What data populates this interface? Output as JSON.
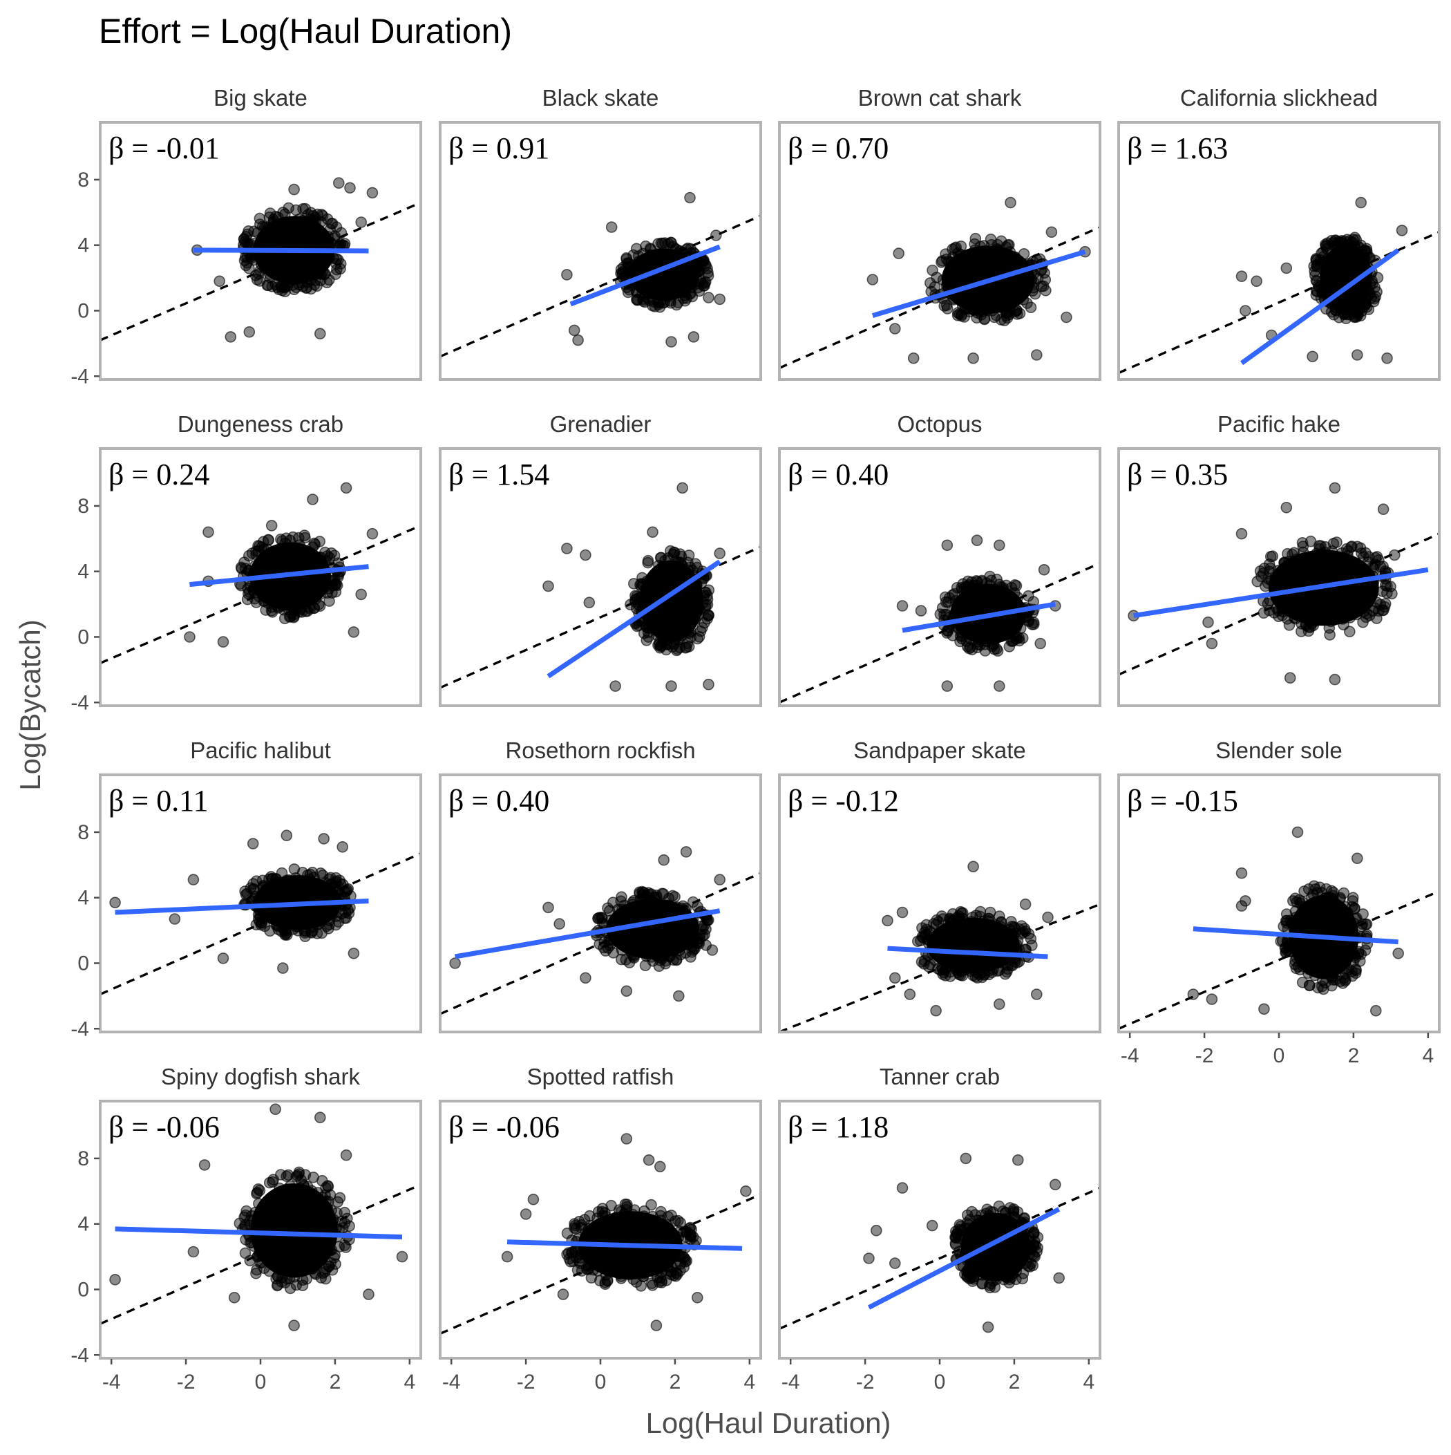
{
  "title": "Effort = Log(Haul Duration)",
  "colors": {
    "fit_line": "#3366FF",
    "points": "#000000",
    "reference_line": "#000000",
    "panel_border": "#b3b3b3"
  },
  "chart_data": {
    "type": "scatter",
    "title": "Effort = Log(Haul Duration)",
    "xlabel": "Log(Haul Duration)",
    "ylabel": "Log(Bycatch)",
    "xlim": [
      -4.3,
      4.3
    ],
    "ylim": [
      -4.2,
      11.5
    ],
    "x_ticks": [
      -4,
      -2,
      0,
      2,
      4
    ],
    "x_tick_labels": [
      "-4",
      "-2",
      "0",
      "2",
      "4"
    ],
    "y_ticks": [
      -4,
      0,
      4,
      8
    ],
    "y_tick_labels": [
      "-4",
      "0",
      "4",
      "8"
    ],
    "reference_line": "dashed, slope 1",
    "fit_line": "solid blue linear fit",
    "facets": [
      {
        "name": "Big skate",
        "beta_label": "β = -0.01",
        "beta": -0.01,
        "cloud": {
          "cx": 0.9,
          "cy": 3.7,
          "rx": 1.4,
          "ry": 2.6
        },
        "xrange": [
          -1.8,
          2.9
        ],
        "fit": [
          [
            -1.8,
            3.7
          ],
          [
            2.9,
            3.65
          ]
        ],
        "ref": [
          [
            -4.3,
            -1.8
          ],
          [
            4.3,
            6.6
          ]
        ],
        "outliers": [
          [
            -1.7,
            3.7
          ],
          [
            -1.1,
            1.8
          ],
          [
            -0.8,
            -1.6
          ],
          [
            -0.3,
            -1.3
          ],
          [
            0.9,
            7.4
          ],
          [
            2.1,
            7.8
          ],
          [
            2.4,
            7.5
          ],
          [
            3.0,
            7.2
          ],
          [
            1.6,
            -1.4
          ],
          [
            2.7,
            5.4
          ]
        ]
      },
      {
        "name": "Black skate",
        "beta_label": "β = 0.91",
        "beta": 0.91,
        "cloud": {
          "cx": 1.7,
          "cy": 2.2,
          "rx": 1.2,
          "ry": 2.0
        },
        "xrange": [
          -0.8,
          3.3
        ],
        "fit": [
          [
            -0.8,
            0.4
          ],
          [
            3.2,
            3.9
          ]
        ],
        "ref": [
          [
            -4.3,
            -2.8
          ],
          [
            4.3,
            5.8
          ]
        ],
        "outliers": [
          [
            -0.9,
            2.2
          ],
          [
            -0.7,
            -1.2
          ],
          [
            -0.6,
            -1.8
          ],
          [
            0.3,
            5.1
          ],
          [
            2.4,
            6.9
          ],
          [
            3.1,
            4.6
          ],
          [
            2.9,
            0.8
          ],
          [
            3.2,
            0.7
          ],
          [
            1.9,
            -1.9
          ],
          [
            2.5,
            -1.6
          ]
        ]
      },
      {
        "name": "Brown cat shark",
        "beta_label": "β = 0.70",
        "beta": 0.7,
        "cloud": {
          "cx": 1.3,
          "cy": 1.9,
          "rx": 1.6,
          "ry": 2.6
        },
        "xrange": [
          -1.9,
          3.9
        ],
        "fit": [
          [
            -1.8,
            -0.3
          ],
          [
            3.9,
            3.6
          ]
        ],
        "ref": [
          [
            -4.3,
            -3.5
          ],
          [
            4.3,
            5.1
          ]
        ],
        "outliers": [
          [
            -1.8,
            1.9
          ],
          [
            -1.1,
            3.5
          ],
          [
            -1.2,
            -1.1
          ],
          [
            -0.7,
            -2.9
          ],
          [
            1.9,
            6.6
          ],
          [
            3.0,
            4.8
          ],
          [
            3.9,
            3.6
          ],
          [
            3.4,
            -0.4
          ],
          [
            0.9,
            -2.9
          ],
          [
            2.6,
            -2.7
          ]
        ]
      },
      {
        "name": "California slickhead",
        "beta_label": "β = 1.63",
        "beta": 1.63,
        "cloud": {
          "cx": 1.8,
          "cy": 2.0,
          "rx": 0.9,
          "ry": 2.6
        },
        "xrange": [
          -1.0,
          3.3
        ],
        "fit": [
          [
            -1.0,
            -3.2
          ],
          [
            3.2,
            3.7
          ]
        ],
        "ref": [
          [
            -4.3,
            -3.8
          ],
          [
            4.3,
            4.8
          ]
        ],
        "outliers": [
          [
            -1.0,
            2.1
          ],
          [
            -0.6,
            1.8
          ],
          [
            -0.9,
            0.0
          ],
          [
            -0.2,
            -1.5
          ],
          [
            0.2,
            2.6
          ],
          [
            2.2,
            6.6
          ],
          [
            3.3,
            4.9
          ],
          [
            2.9,
            -2.9
          ],
          [
            2.1,
            -2.7
          ],
          [
            0.9,
            -2.8
          ]
        ]
      },
      {
        "name": "Dungeness crab",
        "beta_label": "β = 0.24",
        "beta": 0.24,
        "cloud": {
          "cx": 0.8,
          "cy": 3.7,
          "rx": 1.4,
          "ry": 2.6
        },
        "xrange": [
          -1.9,
          3.0
        ],
        "fit": [
          [
            -1.9,
            3.2
          ],
          [
            2.9,
            4.3
          ]
        ],
        "ref": [
          [
            -4.3,
            -1.6
          ],
          [
            4.3,
            6.8
          ]
        ],
        "outliers": [
          [
            -1.9,
            0.0
          ],
          [
            -1.4,
            6.4
          ],
          [
            -1.4,
            3.4
          ],
          [
            -1.0,
            -0.3
          ],
          [
            0.3,
            6.8
          ],
          [
            1.4,
            8.4
          ],
          [
            2.3,
            9.1
          ],
          [
            3.0,
            6.3
          ],
          [
            2.7,
            2.6
          ],
          [
            2.5,
            0.3
          ]
        ]
      },
      {
        "name": "Grenadier",
        "beta_label": "β = 1.54",
        "beta": 1.54,
        "cloud": {
          "cx": 1.9,
          "cy": 2.2,
          "rx": 1.1,
          "ry": 3.1
        },
        "xrange": [
          -1.3,
          3.3
        ],
        "fit": [
          [
            -1.4,
            -2.4
          ],
          [
            3.2,
            4.6
          ]
        ],
        "ref": [
          [
            -4.3,
            -3.1
          ],
          [
            4.3,
            5.5
          ]
        ],
        "outliers": [
          [
            -1.4,
            3.1
          ],
          [
            -0.9,
            5.4
          ],
          [
            -0.4,
            5.0
          ],
          [
            -0.3,
            2.1
          ],
          [
            1.4,
            6.4
          ],
          [
            2.2,
            9.1
          ],
          [
            3.2,
            5.1
          ],
          [
            2.9,
            -2.9
          ],
          [
            1.9,
            -3.0
          ],
          [
            0.4,
            -3.0
          ]
        ]
      },
      {
        "name": "Octopus",
        "beta_label": "β = 0.40",
        "beta": 0.4,
        "cloud": {
          "cx": 1.3,
          "cy": 1.4,
          "rx": 1.3,
          "ry": 2.3
        },
        "xrange": [
          -1.0,
          3.1
        ],
        "fit": [
          [
            -1.0,
            0.4
          ],
          [
            3.1,
            2.0
          ]
        ],
        "ref": [
          [
            -4.3,
            -4.0
          ],
          [
            4.3,
            4.5
          ]
        ],
        "outliers": [
          [
            -1.0,
            1.9
          ],
          [
            -0.5,
            1.6
          ],
          [
            0.2,
            5.6
          ],
          [
            1.0,
            5.9
          ],
          [
            1.6,
            5.6
          ],
          [
            2.8,
            4.1
          ],
          [
            3.1,
            1.9
          ],
          [
            0.2,
            -3.0
          ],
          [
            1.6,
            -3.0
          ],
          [
            2.7,
            -0.4
          ]
        ]
      },
      {
        "name": "Pacific hake",
        "beta_label": "β = 0.35",
        "beta": 0.35,
        "cloud": {
          "cx": 1.2,
          "cy": 3.0,
          "rx": 1.9,
          "ry": 2.9
        },
        "xrange": [
          -3.9,
          4.0
        ],
        "fit": [
          [
            -3.9,
            1.3
          ],
          [
            4.0,
            4.1
          ]
        ],
        "ref": [
          [
            -4.3,
            -2.3
          ],
          [
            4.3,
            6.3
          ]
        ],
        "outliers": [
          [
            -3.9,
            1.3
          ],
          [
            -1.9,
            0.9
          ],
          [
            -1.8,
            -0.4
          ],
          [
            -1.0,
            6.3
          ],
          [
            0.2,
            7.9
          ],
          [
            1.5,
            9.1
          ],
          [
            2.8,
            7.8
          ],
          [
            3.1,
            5.0
          ],
          [
            0.3,
            -2.5
          ],
          [
            1.5,
            -2.6
          ]
        ]
      },
      {
        "name": "Pacific halibut",
        "beta_label": "β = 0.11",
        "beta": 0.11,
        "cloud": {
          "cx": 1.0,
          "cy": 3.7,
          "rx": 1.5,
          "ry": 2.1
        },
        "xrange": [
          -3.9,
          3.0
        ],
        "fit": [
          [
            -3.9,
            3.1
          ],
          [
            2.9,
            3.8
          ]
        ],
        "ref": [
          [
            -4.3,
            -1.9
          ],
          [
            4.3,
            6.7
          ]
        ],
        "outliers": [
          [
            -3.9,
            3.7
          ],
          [
            -2.3,
            2.7
          ],
          [
            -1.8,
            5.1
          ],
          [
            -1.0,
            0.3
          ],
          [
            0.6,
            -0.3
          ],
          [
            -0.2,
            7.3
          ],
          [
            0.7,
            7.8
          ],
          [
            1.7,
            7.6
          ],
          [
            2.2,
            7.1
          ],
          [
            2.5,
            0.6
          ]
        ]
      },
      {
        "name": "Rosethorn rockfish",
        "beta_label": "β = 0.40",
        "beta": 0.4,
        "cloud": {
          "cx": 1.4,
          "cy": 2.1,
          "rx": 1.6,
          "ry": 2.3
        },
        "xrange": [
          -3.9,
          3.3
        ],
        "fit": [
          [
            -3.9,
            0.4
          ],
          [
            3.2,
            3.2
          ]
        ],
        "ref": [
          [
            -4.3,
            -3.1
          ],
          [
            4.3,
            5.5
          ]
        ],
        "outliers": [
          [
            -3.9,
            0.0
          ],
          [
            -1.4,
            3.4
          ],
          [
            -1.1,
            2.4
          ],
          [
            -0.4,
            -0.9
          ],
          [
            0.7,
            -1.7
          ],
          [
            1.7,
            6.3
          ],
          [
            2.3,
            6.8
          ],
          [
            3.2,
            5.1
          ],
          [
            2.1,
            -2.0
          ],
          [
            3.0,
            0.8
          ]
        ]
      },
      {
        "name": "Sandpaper skate",
        "beta_label": "β = -0.12",
        "beta": -0.12,
        "cloud": {
          "cx": 0.9,
          "cy": 1.1,
          "rx": 1.6,
          "ry": 2.1
        },
        "xrange": [
          -1.4,
          3.0
        ],
        "fit": [
          [
            -1.4,
            0.9
          ],
          [
            2.9,
            0.4
          ]
        ],
        "ref": [
          [
            -4.3,
            -4.2
          ],
          [
            4.3,
            3.6
          ]
        ],
        "outliers": [
          [
            -1.4,
            2.6
          ],
          [
            -1.0,
            3.1
          ],
          [
            -1.2,
            -0.9
          ],
          [
            -0.8,
            -1.9
          ],
          [
            0.9,
            5.9
          ],
          [
            2.3,
            3.6
          ],
          [
            2.9,
            2.8
          ],
          [
            -0.1,
            -2.9
          ],
          [
            1.6,
            -2.5
          ],
          [
            2.6,
            -1.9
          ]
        ]
      },
      {
        "name": "Slender sole",
        "beta_label": "β = -0.15",
        "beta": -0.15,
        "cloud": {
          "cx": 1.2,
          "cy": 1.6,
          "rx": 1.2,
          "ry": 3.2
        },
        "xrange": [
          -2.3,
          3.1
        ],
        "fit": [
          [
            -2.3,
            2.1
          ],
          [
            3.2,
            1.3
          ]
        ],
        "ref": [
          [
            -4.3,
            -4.0
          ],
          [
            4.3,
            4.4
          ]
        ],
        "outliers": [
          [
            -2.3,
            -1.9
          ],
          [
            -1.8,
            -2.2
          ],
          [
            -1.0,
            3.5
          ],
          [
            -0.9,
            3.8
          ],
          [
            -1.0,
            5.5
          ],
          [
            0.5,
            8.0
          ],
          [
            2.1,
            6.4
          ],
          [
            3.2,
            0.6
          ],
          [
            -0.4,
            -2.8
          ],
          [
            2.6,
            -2.9
          ]
        ]
      },
      {
        "name": "Spiny dogfish shark",
        "beta_label": "β = -0.06",
        "beta": -0.06,
        "cloud": {
          "cx": 0.9,
          "cy": 3.6,
          "rx": 1.5,
          "ry": 3.6
        },
        "xrange": [
          -3.9,
          3.9
        ],
        "fit": [
          [
            -3.9,
            3.7
          ],
          [
            3.8,
            3.2
          ]
        ],
        "ref": [
          [
            -4.3,
            -2.1
          ],
          [
            4.3,
            6.4
          ]
        ],
        "outliers": [
          [
            -3.9,
            0.6
          ],
          [
            -1.8,
            2.3
          ],
          [
            -1.5,
            7.6
          ],
          [
            0.4,
            11.0
          ],
          [
            1.6,
            10.5
          ],
          [
            2.3,
            8.2
          ],
          [
            3.8,
            2.0
          ],
          [
            2.9,
            -0.3
          ],
          [
            0.9,
            -2.2
          ],
          [
            -0.7,
            -0.5
          ]
        ]
      },
      {
        "name": "Spotted ratfish",
        "beta_label": "β = -0.06",
        "beta": -0.06,
        "cloud": {
          "cx": 0.8,
          "cy": 2.7,
          "rx": 1.8,
          "ry": 2.6
        },
        "xrange": [
          -2.5,
          3.8
        ],
        "fit": [
          [
            -2.5,
            2.9
          ],
          [
            3.8,
            2.5
          ]
        ],
        "ref": [
          [
            -4.3,
            -2.7
          ],
          [
            4.3,
            5.8
          ]
        ],
        "outliers": [
          [
            -2.5,
            2.0
          ],
          [
            -1.8,
            5.5
          ],
          [
            -2.0,
            4.6
          ],
          [
            -1.0,
            -0.3
          ],
          [
            0.7,
            9.2
          ],
          [
            1.3,
            7.9
          ],
          [
            1.6,
            7.5
          ],
          [
            3.9,
            6.0
          ],
          [
            2.6,
            -0.5
          ],
          [
            1.5,
            -2.2
          ]
        ]
      },
      {
        "name": "Tanner crab",
        "beta_label": "β = 1.18",
        "beta": 1.18,
        "cloud": {
          "cx": 1.5,
          "cy": 2.6,
          "rx": 1.2,
          "ry": 2.6
        },
        "xrange": [
          -1.9,
          3.2
        ],
        "fit": [
          [
            -1.9,
            -1.1
          ],
          [
            3.2,
            4.9
          ]
        ],
        "ref": [
          [
            -4.3,
            -2.4
          ],
          [
            4.3,
            6.2
          ]
        ],
        "outliers": [
          [
            -1.9,
            1.9
          ],
          [
            -1.7,
            3.6
          ],
          [
            -1.2,
            1.6
          ],
          [
            -1.0,
            6.2
          ],
          [
            -0.2,
            3.9
          ],
          [
            0.7,
            8.0
          ],
          [
            2.1,
            7.9
          ],
          [
            3.1,
            6.4
          ],
          [
            3.2,
            0.7
          ],
          [
            1.3,
            -2.3
          ]
        ]
      }
    ]
  }
}
